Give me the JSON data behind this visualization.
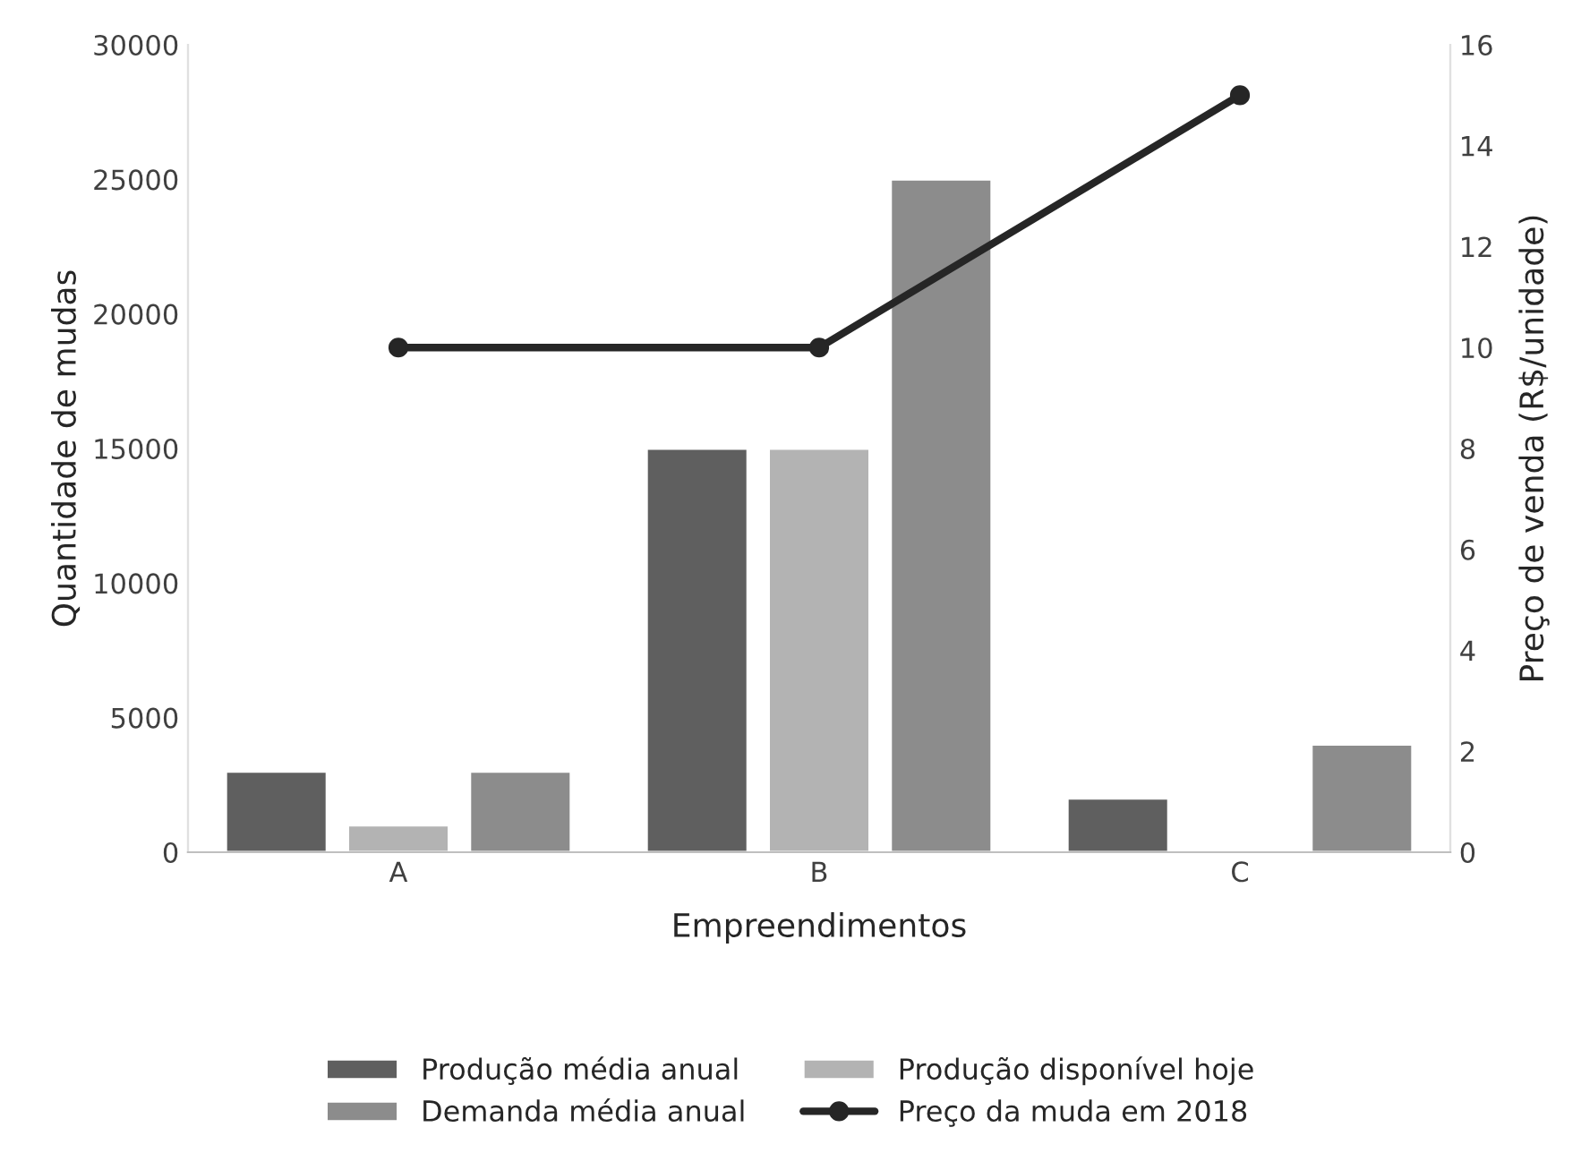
{
  "chart_data": {
    "type": "bar",
    "xlabel": "Empreendimentos",
    "ylabel": "Quantidade de mudas",
    "y2label": "Preço de venda (R$/unidade)",
    "categories": [
      "A",
      "B",
      "C"
    ],
    "series": [
      {
        "name": "Produção média anual",
        "color": "#5f5f5f",
        "values": [
          3000,
          15000,
          2000
        ]
      },
      {
        "name": "Produção disponível hoje",
        "color": "#b3b3b3",
        "values": [
          1000,
          15000,
          null
        ]
      },
      {
        "name": "Demanda média anual",
        "color": "#8c8c8c",
        "values": [
          3000,
          25000,
          4000
        ]
      },
      {
        "name": "Preço da muda em 2018",
        "type": "line",
        "axis": "y2",
        "color": "#262626",
        "marker": "circle",
        "values": [
          10,
          10,
          15
        ]
      }
    ],
    "ylim": [
      0,
      30000
    ],
    "yticks": [
      0,
      5000,
      10000,
      15000,
      20000,
      25000,
      30000
    ],
    "y2lim": [
      0,
      16
    ],
    "y2ticks": [
      0,
      2,
      4,
      6,
      8,
      10,
      12,
      14,
      16
    ],
    "grid": false,
    "legend": "bottom"
  }
}
